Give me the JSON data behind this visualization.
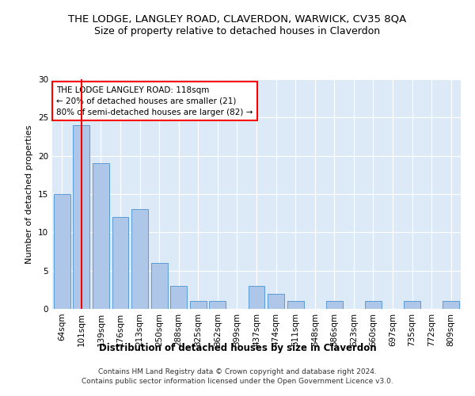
{
  "title": "THE LODGE, LANGLEY ROAD, CLAVERDON, WARWICK, CV35 8QA",
  "subtitle": "Size of property relative to detached houses in Claverdon",
  "xlabel": "Distribution of detached houses by size in Claverdon",
  "ylabel": "Number of detached properties",
  "categories": [
    "64sqm",
    "101sqm",
    "139sqm",
    "176sqm",
    "213sqm",
    "250sqm",
    "288sqm",
    "325sqm",
    "362sqm",
    "399sqm",
    "437sqm",
    "474sqm",
    "511sqm",
    "548sqm",
    "586sqm",
    "623sqm",
    "660sqm",
    "697sqm",
    "735sqm",
    "772sqm",
    "809sqm"
  ],
  "values": [
    15,
    24,
    19,
    12,
    13,
    6,
    3,
    1,
    1,
    0,
    3,
    2,
    1,
    0,
    1,
    0,
    1,
    0,
    1,
    0,
    1
  ],
  "bar_color": "#aec6e8",
  "bar_edgecolor": "#5b9bd5",
  "vline_x": 1,
  "vline_color": "red",
  "ylim": [
    0,
    30
  ],
  "yticks": [
    0,
    5,
    10,
    15,
    20,
    25,
    30
  ],
  "annotation_line1": "THE LODGE LANGLEY ROAD: 118sqm",
  "annotation_line2": "← 20% of detached houses are smaller (21)",
  "annotation_line3": "80% of semi-detached houses are larger (82) →",
  "annotation_box_color": "white",
  "annotation_box_edgecolor": "red",
  "footer_line1": "Contains HM Land Registry data © Crown copyright and database right 2024.",
  "footer_line2": "Contains public sector information licensed under the Open Government Licence v3.0.",
  "background_color": "white",
  "plot_background_color": "#dce9f7"
}
